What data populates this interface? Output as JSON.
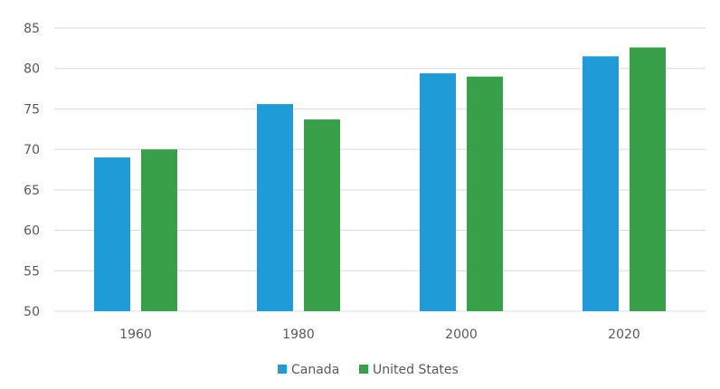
{
  "chart_data": {
    "type": "bar",
    "categories": [
      "1960",
      "1980",
      "2000",
      "2020"
    ],
    "series": [
      {
        "name": "Canada",
        "values": [
          69.0,
          75.6,
          79.4,
          81.5
        ],
        "color": "#1f9bd7"
      },
      {
        "name": "United States",
        "values": [
          70.0,
          73.7,
          79.0,
          82.6
        ],
        "color": "#38a048"
      }
    ],
    "ylim": [
      50,
      85
    ],
    "yticks": [
      50,
      55,
      60,
      65,
      70,
      75,
      80,
      85
    ],
    "grid": true,
    "legend": "bottom-center",
    "gridline_color": "#d9d9d9"
  }
}
